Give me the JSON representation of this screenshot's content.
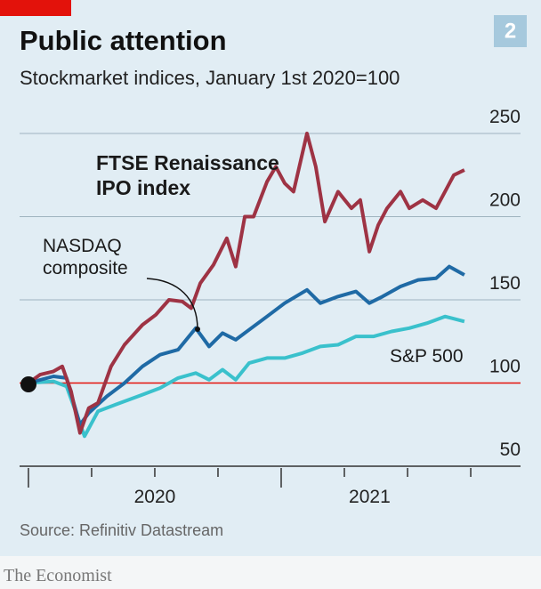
{
  "chart_data": {
    "type": "line",
    "title": "Public attention",
    "subtitle": "Stockmarket indices, January 1st 2020=100",
    "chart_number": "2",
    "source": "Source: Refinitiv Datastream",
    "brand": "The Economist",
    "base_value": 100,
    "ylim": [
      50,
      250
    ],
    "yticks": [
      50,
      100,
      150,
      200,
      250
    ],
    "xlim": [
      2019.965,
      2021.947
    ],
    "xticks": [
      2020,
      2020.25,
      2020.5,
      2020.75,
      2021,
      2021.25,
      2021.5,
      2021.75
    ],
    "xlabels": [
      {
        "value": 2020.5,
        "label": "2020"
      },
      {
        "value": 2021.35,
        "label": "2021"
      }
    ],
    "grid": true,
    "series": [
      {
        "name": "FTSE Renaissance IPO index",
        "color": "#9e3344",
        "x": [
          2020,
          2020.046,
          2020.099,
          2020.134,
          2020.169,
          2020.204,
          2020.239,
          2020.275,
          2020.327,
          2020.38,
          2020.451,
          2020.504,
          2020.556,
          2020.609,
          2020.644,
          2020.68,
          2020.732,
          2020.785,
          2020.82,
          2020.856,
          2020.891,
          2020.944,
          2020.979,
          2021.014,
          2021.049,
          2021.102,
          2021.137,
          2021.173,
          2021.225,
          2021.278,
          2021.313,
          2021.349,
          2021.384,
          2021.419,
          2021.472,
          2021.507,
          2021.56,
          2021.613,
          2021.648,
          2021.683,
          2021.725
        ],
        "values": [
          100,
          105,
          107,
          110,
          95,
          70,
          85,
          88,
          110,
          123,
          135,
          141,
          150,
          149,
          145,
          160,
          171,
          187,
          170,
          200,
          200,
          221,
          230,
          220,
          215,
          250,
          230,
          197,
          215,
          205,
          210,
          179,
          195,
          205,
          215,
          205,
          210,
          205,
          215,
          225,
          228
        ]
      },
      {
        "name": "NASDAQ composite",
        "color": "#1f6aa5",
        "x": [
          2020,
          2020.099,
          2020.151,
          2020.204,
          2020.239,
          2020.31,
          2020.38,
          2020.451,
          2020.521,
          2020.592,
          2020.662,
          2020.715,
          2020.768,
          2020.82,
          2020.873,
          2020.944,
          2021.014,
          2021.102,
          2021.155,
          2021.225,
          2021.296,
          2021.349,
          2021.401,
          2021.472,
          2021.542,
          2021.613,
          2021.665,
          2021.725
        ],
        "values": [
          100,
          104,
          103,
          75,
          82,
          92,
          100,
          110,
          117,
          120,
          133,
          122,
          130,
          126,
          132,
          140,
          148,
          156,
          148,
          152,
          155,
          148,
          152,
          158,
          162,
          163,
          170,
          165
        ]
      },
      {
        "name": "S&P 500",
        "color": "#3ac1cc",
        "x": [
          2020,
          2020.099,
          2020.151,
          2020.222,
          2020.275,
          2020.345,
          2020.451,
          2020.521,
          2020.592,
          2020.662,
          2020.715,
          2020.768,
          2020.82,
          2020.873,
          2020.944,
          2021.014,
          2021.085,
          2021.155,
          2021.225,
          2021.296,
          2021.366,
          2021.437,
          2021.507,
          2021.577,
          2021.648,
          2021.725
        ],
        "values": [
          100,
          101,
          98,
          68,
          83,
          87,
          93,
          97,
          103,
          106,
          102,
          108,
          102,
          112,
          115,
          115,
          118,
          122,
          123,
          128,
          128,
          131,
          133,
          136,
          140,
          137
        ]
      }
    ]
  }
}
